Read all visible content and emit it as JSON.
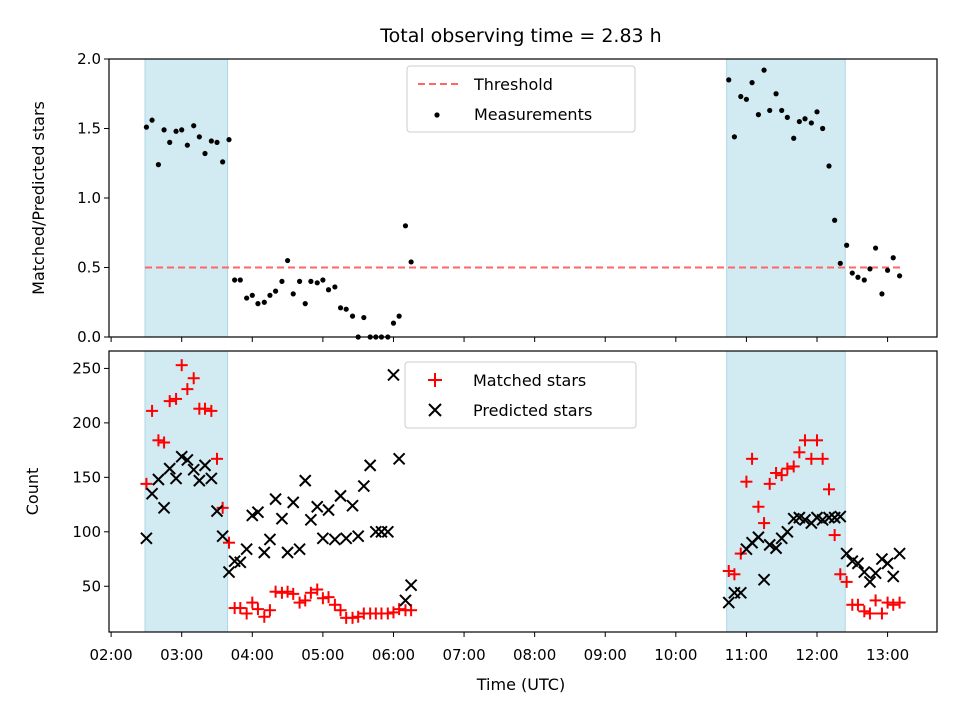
{
  "chart_data": {
    "title": "Total observing time = 2.83 h",
    "xlabel": "Time (UTC)",
    "x_tick_labels": [
      "02:00",
      "03:00",
      "04:00",
      "05:00",
      "06:00",
      "07:00",
      "08:00",
      "09:00",
      "10:00",
      "11:00",
      "12:00",
      "13:00"
    ],
    "x_unit": "hours UTC",
    "xlim": [
      1.97,
      13.7
    ],
    "highlight_spans": [
      [
        2.48,
        3.65
      ],
      [
        10.72,
        12.4
      ]
    ],
    "highlight_color": "#add8e6",
    "panels": [
      {
        "type": "scatter",
        "ylabel": "Matched/Predicted stars",
        "ylim": [
          0,
          2.0
        ],
        "yticks": [
          "0.0",
          "0.5",
          "1.0",
          "1.5",
          "2.0"
        ],
        "ytick_values": [
          0,
          0.5,
          1.0,
          1.5,
          2.0
        ],
        "threshold": {
          "name": "Threshold",
          "value": 0.5,
          "x_range": [
            2.48,
            13.2
          ],
          "color": "#ff6666"
        },
        "series": [
          {
            "name": "Measurements",
            "color": "#000000",
            "marker": "dot",
            "points": [
              [
                2.5,
                1.51
              ],
              [
                2.58,
                1.56
              ],
              [
                2.67,
                1.24
              ],
              [
                2.75,
                1.49
              ],
              [
                2.83,
                1.4
              ],
              [
                2.92,
                1.48
              ],
              [
                3.0,
                1.49
              ],
              [
                3.08,
                1.38
              ],
              [
                3.17,
                1.52
              ],
              [
                3.25,
                1.44
              ],
              [
                3.33,
                1.32
              ],
              [
                3.42,
                1.41
              ],
              [
                3.5,
                1.4
              ],
              [
                3.58,
                1.26
              ],
              [
                3.67,
                1.42
              ],
              [
                3.75,
                0.41
              ],
              [
                3.83,
                0.41
              ],
              [
                3.92,
                0.28
              ],
              [
                4.0,
                0.3
              ],
              [
                4.08,
                0.24
              ],
              [
                4.17,
                0.25
              ],
              [
                4.25,
                0.3
              ],
              [
                4.33,
                0.33
              ],
              [
                4.42,
                0.4
              ],
              [
                4.5,
                0.55
              ],
              [
                4.58,
                0.31
              ],
              [
                4.67,
                0.4
              ],
              [
                4.75,
                0.24
              ],
              [
                4.83,
                0.4
              ],
              [
                4.92,
                0.39
              ],
              [
                5.0,
                0.41
              ],
              [
                5.08,
                0.34
              ],
              [
                5.17,
                0.36
              ],
              [
                5.25,
                0.21
              ],
              [
                5.33,
                0.2
              ],
              [
                5.42,
                0.15
              ],
              [
                5.5,
                0.0
              ],
              [
                5.58,
                0.14
              ],
              [
                5.67,
                0.0
              ],
              [
                5.75,
                0.0
              ],
              [
                5.83,
                0.0
              ],
              [
                5.92,
                0.0
              ],
              [
                6.0,
                0.1
              ],
              [
                6.08,
                0.15
              ],
              [
                6.17,
                0.8
              ],
              [
                6.25,
                0.54
              ],
              [
                10.75,
                1.85
              ],
              [
                10.83,
                1.44
              ],
              [
                10.92,
                1.73
              ],
              [
                11.0,
                1.71
              ],
              [
                11.08,
                1.83
              ],
              [
                11.17,
                1.6
              ],
              [
                11.25,
                1.92
              ],
              [
                11.33,
                1.63
              ],
              [
                11.42,
                1.75
              ],
              [
                11.5,
                1.63
              ],
              [
                11.58,
                1.58
              ],
              [
                11.67,
                1.43
              ],
              [
                11.75,
                1.55
              ],
              [
                11.83,
                1.57
              ],
              [
                11.92,
                1.54
              ],
              [
                12.0,
                1.62
              ],
              [
                12.08,
                1.5
              ],
              [
                12.17,
                1.23
              ],
              [
                12.25,
                0.84
              ],
              [
                12.33,
                0.53
              ],
              [
                12.42,
                0.66
              ],
              [
                12.5,
                0.46
              ],
              [
                12.58,
                0.43
              ],
              [
                12.67,
                0.41
              ],
              [
                12.75,
                0.49
              ],
              [
                12.83,
                0.64
              ],
              [
                12.92,
                0.31
              ],
              [
                13.0,
                0.48
              ],
              [
                13.08,
                0.57
              ],
              [
                13.17,
                0.44
              ]
            ]
          }
        ],
        "legend": [
          "Threshold",
          "Measurements"
        ],
        "legend_position": "top-center"
      },
      {
        "type": "scatter",
        "ylabel": "Count",
        "ylim": [
          8,
          266
        ],
        "yticks": [
          "50",
          "100",
          "150",
          "200",
          "250"
        ],
        "ytick_values": [
          50,
          100,
          150,
          200,
          250
        ],
        "series": [
          {
            "name": "Matched stars",
            "color": "#ff0000",
            "marker": "plus",
            "points": [
              [
                2.5,
                144
              ],
              [
                2.58,
                211
              ],
              [
                2.67,
                184
              ],
              [
                2.75,
                182
              ],
              [
                2.83,
                220
              ],
              [
                2.92,
                222
              ],
              [
                3.0,
                253
              ],
              [
                3.08,
                231
              ],
              [
                3.17,
                241
              ],
              [
                3.25,
                213
              ],
              [
                3.33,
                213
              ],
              [
                3.42,
                211
              ],
              [
                3.5,
                167
              ],
              [
                3.58,
                122
              ],
              [
                3.67,
                90
              ],
              [
                3.75,
                30
              ],
              [
                3.83,
                30
              ],
              [
                3.92,
                25
              ],
              [
                4.0,
                35
              ],
              [
                4.08,
                29
              ],
              [
                4.17,
                22
              ],
              [
                4.25,
                28
              ],
              [
                4.33,
                45
              ],
              [
                4.42,
                44
              ],
              [
                4.5,
                45
              ],
              [
                4.58,
                43
              ],
              [
                4.67,
                35
              ],
              [
                4.75,
                37
              ],
              [
                4.83,
                44
              ],
              [
                4.92,
                47
              ],
              [
                5.0,
                39
              ],
              [
                5.08,
                40
              ],
              [
                5.17,
                33
              ],
              [
                5.25,
                28
              ],
              [
                5.33,
                21
              ],
              [
                5.42,
                21
              ],
              [
                5.5,
                22
              ],
              [
                5.58,
                25
              ],
              [
                5.67,
                25
              ],
              [
                5.75,
                25
              ],
              [
                5.83,
                25
              ],
              [
                5.92,
                25
              ],
              [
                6.0,
                26
              ],
              [
                6.08,
                29
              ],
              [
                6.17,
                28
              ],
              [
                6.25,
                28
              ],
              [
                10.75,
                64
              ],
              [
                10.83,
                61
              ],
              [
                10.92,
                80
              ],
              [
                11.0,
                146
              ],
              [
                11.08,
                167
              ],
              [
                11.17,
                123
              ],
              [
                11.25,
                108
              ],
              [
                11.33,
                144
              ],
              [
                11.42,
                154
              ],
              [
                11.5,
                152
              ],
              [
                11.58,
                158
              ],
              [
                11.67,
                160
              ],
              [
                11.75,
                173
              ],
              [
                11.83,
                184
              ],
              [
                11.92,
                167
              ],
              [
                12.0,
                184
              ],
              [
                12.08,
                167
              ],
              [
                12.17,
                139
              ],
              [
                12.25,
                97
              ],
              [
                12.33,
                61
              ],
              [
                12.42,
                54
              ],
              [
                12.5,
                33
              ],
              [
                12.58,
                33
              ],
              [
                12.67,
                27
              ],
              [
                12.75,
                25
              ],
              [
                12.83,
                37
              ],
              [
                12.92,
                25
              ],
              [
                13.0,
                35
              ],
              [
                13.08,
                33
              ],
              [
                13.17,
                35
              ]
            ]
          },
          {
            "name": "Predicted stars",
            "color": "#000000",
            "marker": "x",
            "points": [
              [
                2.5,
                94
              ],
              [
                2.58,
                135
              ],
              [
                2.67,
                148
              ],
              [
                2.75,
                122
              ],
              [
                2.83,
                158
              ],
              [
                2.92,
                149
              ],
              [
                3.0,
                169
              ],
              [
                3.08,
                166
              ],
              [
                3.17,
                157
              ],
              [
                3.25,
                147
              ],
              [
                3.33,
                161
              ],
              [
                3.42,
                149
              ],
              [
                3.5,
                119
              ],
              [
                3.58,
                96
              ],
              [
                3.67,
                63
              ],
              [
                3.75,
                73
              ],
              [
                3.83,
                72
              ],
              [
                3.92,
                84
              ],
              [
                4.0,
                115
              ],
              [
                4.08,
                118
              ],
              [
                4.17,
                81
              ],
              [
                4.25,
                93
              ],
              [
                4.33,
                130
              ],
              [
                4.42,
                112
              ],
              [
                4.5,
                81
              ],
              [
                4.58,
                127
              ],
              [
                4.67,
                84
              ],
              [
                4.75,
                147
              ],
              [
                4.83,
                111
              ],
              [
                4.92,
                123
              ],
              [
                5.0,
                94
              ],
              [
                5.08,
                120
              ],
              [
                5.17,
                93
              ],
              [
                5.25,
                133
              ],
              [
                5.33,
                94
              ],
              [
                5.42,
                124
              ],
              [
                5.5,
                96
              ],
              [
                5.58,
                142
              ],
              [
                5.67,
                161
              ],
              [
                5.75,
                100
              ],
              [
                5.83,
                100
              ],
              [
                5.92,
                100
              ],
              [
                6.0,
                244
              ],
              [
                6.08,
                167
              ],
              [
                6.17,
                37
              ],
              [
                6.25,
                51
              ],
              [
                10.75,
                35
              ],
              [
                10.83,
                44
              ],
              [
                10.92,
                44
              ],
              [
                11.0,
                84
              ],
              [
                11.08,
                90
              ],
              [
                11.17,
                95
              ],
              [
                11.25,
                56
              ],
              [
                11.33,
                88
              ],
              [
                11.42,
                85
              ],
              [
                11.5,
                94
              ],
              [
                11.58,
                100
              ],
              [
                11.67,
                112
              ],
              [
                11.75,
                113
              ],
              [
                11.83,
                111
              ],
              [
                11.92,
                108
              ],
              [
                12.0,
                113
              ],
              [
                12.08,
                111
              ],
              [
                12.17,
                113
              ],
              [
                12.25,
                113
              ],
              [
                12.33,
                114
              ],
              [
                12.42,
                80
              ],
              [
                12.5,
                73
              ],
              [
                12.58,
                71
              ],
              [
                12.67,
                63
              ],
              [
                12.75,
                54
              ],
              [
                12.83,
                62
              ],
              [
                12.92,
                75
              ],
              [
                13.0,
                71
              ],
              [
                13.08,
                59
              ],
              [
                13.17,
                80
              ]
            ]
          }
        ],
        "legend": [
          "Matched stars",
          "Predicted stars"
        ],
        "legend_position": "top-center"
      }
    ]
  }
}
